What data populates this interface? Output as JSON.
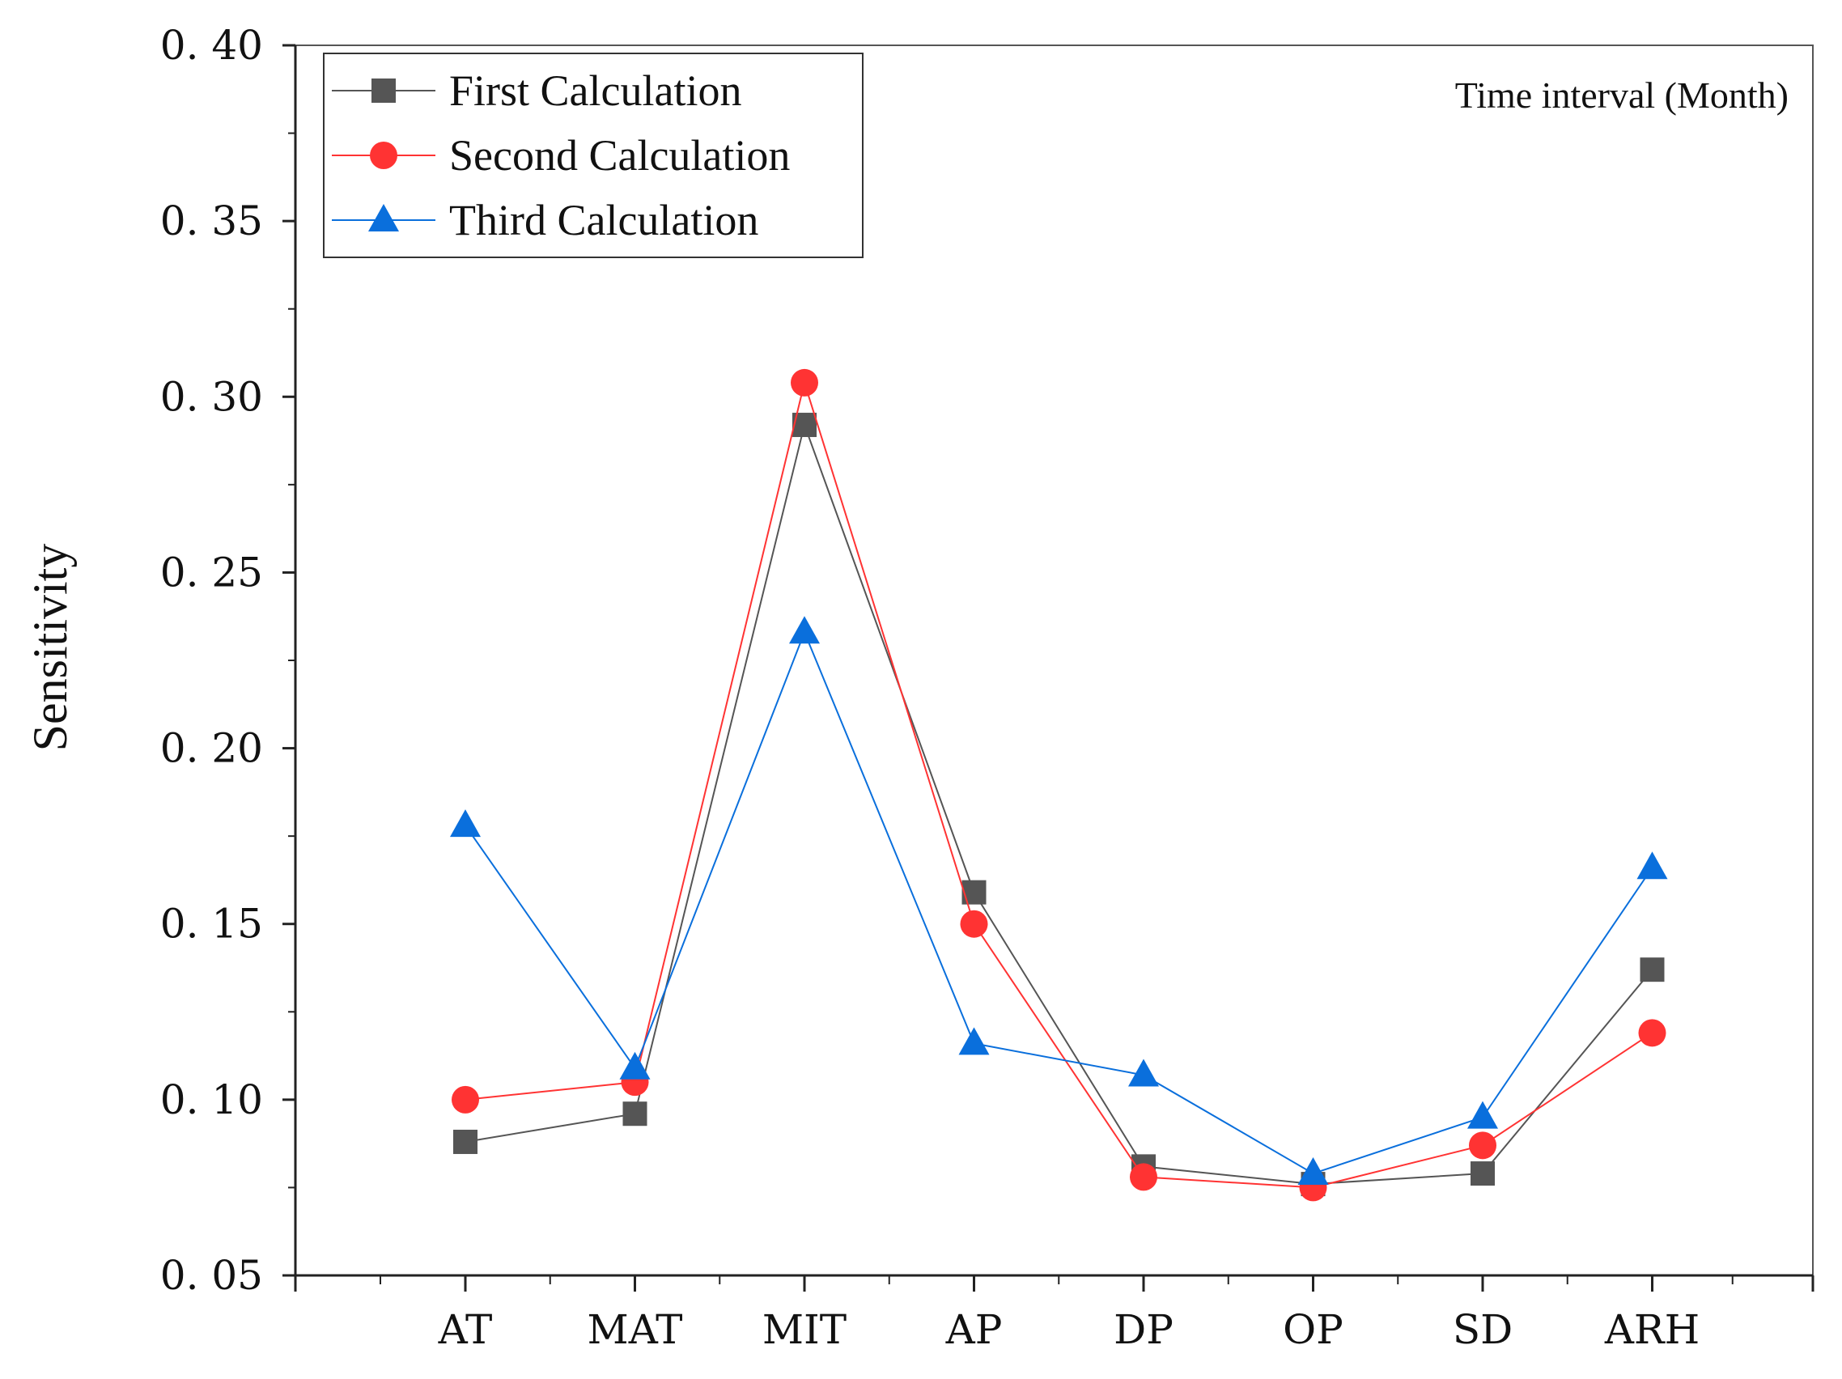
{
  "chart_data": {
    "type": "line",
    "title": "",
    "xlabel": "",
    "ylabel": "Sensitivity",
    "annotation": "Time interval (Month)",
    "categories": [
      "AT",
      "MAT",
      "MIT",
      "AP",
      "DP",
      "OP",
      "SD",
      "ARH"
    ],
    "ylim": [
      0.05,
      0.4
    ],
    "yticks": [
      0.05,
      0.1,
      0.15,
      0.2,
      0.25,
      0.3,
      0.35,
      0.4
    ],
    "ytick_labels": [
      "0. 05",
      "0. 10",
      "0. 15",
      "0. 20",
      "0. 25",
      "0. 30",
      "0. 35",
      "0. 40"
    ],
    "legend_position": "top-left",
    "series": [
      {
        "name": "First Calculation",
        "marker": "square",
        "color": "#555555",
        "values": [
          0.088,
          0.096,
          0.292,
          0.159,
          0.081,
          0.076,
          0.079,
          0.137
        ]
      },
      {
        "name": "Second Calculation",
        "marker": "circle",
        "color": "#ff3333",
        "values": [
          0.1,
          0.105,
          0.304,
          0.15,
          0.078,
          0.075,
          0.087,
          0.119
        ]
      },
      {
        "name": "Third Calculation",
        "marker": "triangle",
        "color": "#0a6fdc",
        "values": [
          0.178,
          0.109,
          0.233,
          0.116,
          0.107,
          0.079,
          0.095,
          0.166
        ]
      }
    ]
  }
}
